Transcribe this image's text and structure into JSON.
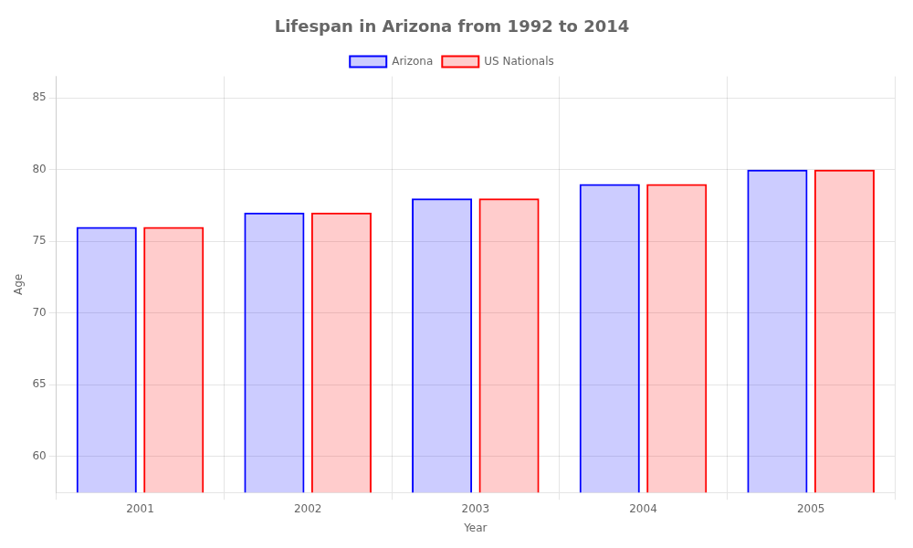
{
  "chart_data": {
    "type": "bar",
    "title": "Lifespan in Arizona from 1992 to 2014",
    "x_label": "Year",
    "y_label": "Age",
    "categories": [
      "2001",
      "2002",
      "2003",
      "2004",
      "2005"
    ],
    "series": [
      {
        "name": "Arizona",
        "color": "#0000ff",
        "values": [
          76,
          77,
          78,
          79,
          80
        ]
      },
      {
        "name": "US Nationals",
        "color": "#ff0000",
        "values": [
          76,
          77,
          78,
          79,
          80
        ]
      }
    ],
    "ylim": [
      57.5,
      86.5
    ],
    "yticks": [
      60,
      65,
      70,
      75,
      80,
      85
    ],
    "grid": true,
    "legend": "top"
  }
}
